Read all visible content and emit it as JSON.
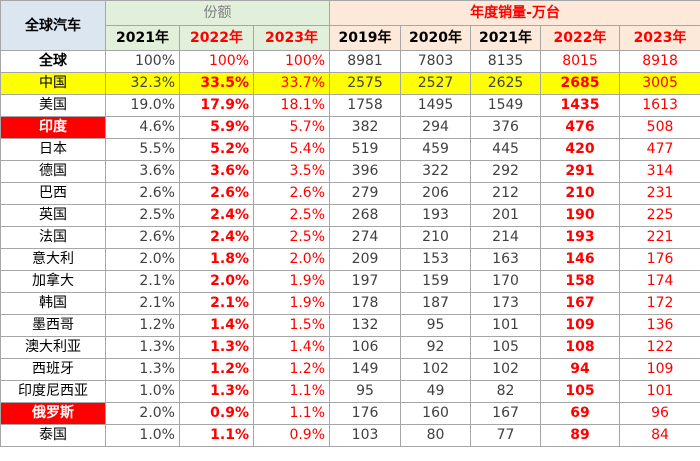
{
  "header": {
    "region_label": "全球汽车",
    "share_group": "份额",
    "sales_group": "年度销量-万台",
    "share_years": [
      "2021年",
      "2022年",
      "2023年"
    ],
    "sales_years": [
      "2019年",
      "2020年",
      "2021年",
      "2022年",
      "2023年"
    ]
  },
  "rows": [
    {
      "name": "全球",
      "share": [
        "100%",
        "100%",
        "100%"
      ],
      "sales": [
        "8981",
        "7803",
        "8135",
        "8015",
        "8918"
      ],
      "style": "total"
    },
    {
      "name": "中国",
      "share": [
        "32.3%",
        "33.5%",
        "33.7%"
      ],
      "sales": [
        "2575",
        "2527",
        "2625",
        "2685",
        "3005"
      ],
      "style": "highlight"
    },
    {
      "name": "美国",
      "share": [
        "19.0%",
        "17.9%",
        "18.1%"
      ],
      "sales": [
        "1758",
        "1495",
        "1549",
        "1435",
        "1613"
      ],
      "style": "normal"
    },
    {
      "name": "印度",
      "share": [
        "4.6%",
        "5.9%",
        "5.7%"
      ],
      "sales": [
        "382",
        "294",
        "376",
        "476",
        "508"
      ],
      "style": "redname"
    },
    {
      "name": "日本",
      "share": [
        "5.5%",
        "5.2%",
        "5.4%"
      ],
      "sales": [
        "519",
        "459",
        "445",
        "420",
        "477"
      ],
      "style": "normal"
    },
    {
      "name": "德国",
      "share": [
        "3.6%",
        "3.6%",
        "3.5%"
      ],
      "sales": [
        "396",
        "322",
        "292",
        "291",
        "314"
      ],
      "style": "normal"
    },
    {
      "name": "巴西",
      "share": [
        "2.6%",
        "2.6%",
        "2.6%"
      ],
      "sales": [
        "279",
        "206",
        "212",
        "210",
        "231"
      ],
      "style": "normal"
    },
    {
      "name": "英国",
      "share": [
        "2.5%",
        "2.4%",
        "2.5%"
      ],
      "sales": [
        "268",
        "193",
        "201",
        "190",
        "225"
      ],
      "style": "normal"
    },
    {
      "name": "法国",
      "share": [
        "2.6%",
        "2.4%",
        "2.5%"
      ],
      "sales": [
        "274",
        "210",
        "214",
        "193",
        "221"
      ],
      "style": "normal"
    },
    {
      "name": "意大利",
      "share": [
        "2.0%",
        "1.8%",
        "2.0%"
      ],
      "sales": [
        "209",
        "153",
        "163",
        "146",
        "176"
      ],
      "style": "normal"
    },
    {
      "name": "加拿大",
      "share": [
        "2.1%",
        "2.0%",
        "1.9%"
      ],
      "sales": [
        "197",
        "159",
        "170",
        "158",
        "174"
      ],
      "style": "normal"
    },
    {
      "name": "韩国",
      "share": [
        "2.1%",
        "2.1%",
        "1.9%"
      ],
      "sales": [
        "178",
        "187",
        "173",
        "167",
        "172"
      ],
      "style": "normal"
    },
    {
      "name": "墨西哥",
      "share": [
        "1.2%",
        "1.4%",
        "1.5%"
      ],
      "sales": [
        "132",
        "95",
        "101",
        "109",
        "136"
      ],
      "style": "normal"
    },
    {
      "name": "澳大利亚",
      "share": [
        "1.3%",
        "1.3%",
        "1.4%"
      ],
      "sales": [
        "106",
        "92",
        "105",
        "108",
        "122"
      ],
      "style": "normal"
    },
    {
      "name": "西班牙",
      "share": [
        "1.3%",
        "1.2%",
        "1.2%"
      ],
      "sales": [
        "149",
        "102",
        "102",
        "94",
        "109"
      ],
      "style": "normal"
    },
    {
      "name": "印度尼西亚",
      "share": [
        "1.0%",
        "1.3%",
        "1.1%"
      ],
      "sales": [
        "95",
        "49",
        "82",
        "105",
        "101"
      ],
      "style": "normal"
    },
    {
      "name": "俄罗斯",
      "share": [
        "2.0%",
        "0.9%",
        "1.1%"
      ],
      "sales": [
        "176",
        "160",
        "167",
        "69",
        "96"
      ],
      "style": "redname"
    },
    {
      "name": "泰国",
      "share": [
        "1.0%",
        "1.1%",
        "0.9%"
      ],
      "sales": [
        "103",
        "80",
        "77",
        "89",
        "84"
      ],
      "style": "normal"
    }
  ],
  "colors": {
    "region_header_bg": "#dce6f1",
    "share_header_bg": "#e2efda",
    "sales_header_bg": "#fde9d9",
    "highlight_row_bg": "#ffff00",
    "red_name_bg": "#ff0000",
    "accent_red": "#ff0000"
  }
}
